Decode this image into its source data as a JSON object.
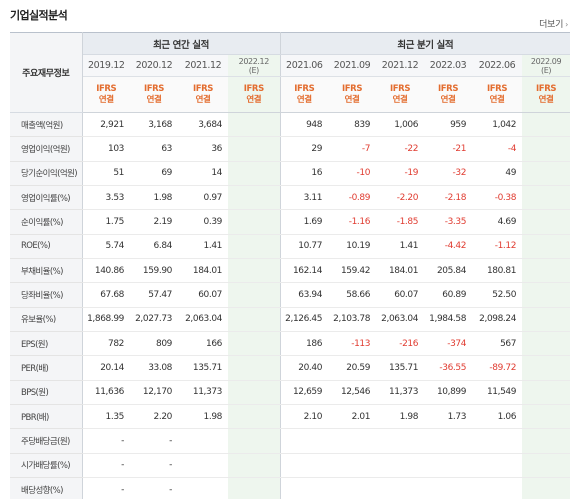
{
  "header": {
    "title": "기업실적분석",
    "more": "더보기"
  },
  "table": {
    "row_header_label": "주요재무정보",
    "annual_group": "최근 연간 실적",
    "quarter_group": "최근 분기 실적",
    "annual_periods": [
      {
        "label": "2019.12",
        "est": ""
      },
      {
        "label": "2020.12",
        "est": ""
      },
      {
        "label": "2021.12",
        "est": ""
      },
      {
        "label": "2022.12",
        "est": "(E)"
      }
    ],
    "quarter_periods": [
      {
        "label": "2021.06",
        "est": ""
      },
      {
        "label": "2021.09",
        "est": ""
      },
      {
        "label": "2021.12",
        "est": ""
      },
      {
        "label": "2022.03",
        "est": ""
      },
      {
        "label": "2022.06",
        "est": ""
      },
      {
        "label": "2022.09",
        "est": "(E)"
      }
    ],
    "ifrs": {
      "line1": "IFRS",
      "line2": "연결"
    },
    "rows": [
      {
        "label": "매출액(억원)",
        "values": [
          "2,921",
          "3,168",
          "3,684",
          "",
          "948",
          "839",
          "1,006",
          "959",
          "1,042",
          ""
        ]
      },
      {
        "label": "영업이익(억원)",
        "values": [
          "103",
          "63",
          "36",
          "",
          "29",
          "-7",
          "-22",
          "-21",
          "-4",
          ""
        ]
      },
      {
        "label": "당기순이익(억원)",
        "values": [
          "51",
          "69",
          "14",
          "",
          "16",
          "-10",
          "-19",
          "-32",
          "49",
          ""
        ]
      },
      {
        "label": "영업이익률(%)",
        "values": [
          "3.53",
          "1.98",
          "0.97",
          "",
          "3.11",
          "-0.89",
          "-2.20",
          "-2.18",
          "-0.38",
          ""
        ]
      },
      {
        "label": "순이익률(%)",
        "values": [
          "1.75",
          "2.19",
          "0.39",
          "",
          "1.69",
          "-1.16",
          "-1.85",
          "-3.35",
          "4.69",
          ""
        ]
      },
      {
        "label": "ROE(%)",
        "values": [
          "5.74",
          "6.84",
          "1.41",
          "",
          "10.77",
          "10.19",
          "1.41",
          "-4.42",
          "-1.12",
          ""
        ]
      },
      {
        "label": "부채비율(%)",
        "values": [
          "140.86",
          "159.90",
          "184.01",
          "",
          "162.14",
          "159.42",
          "184.01",
          "205.84",
          "180.81",
          ""
        ]
      },
      {
        "label": "당좌비율(%)",
        "values": [
          "67.68",
          "57.47",
          "60.07",
          "",
          "63.94",
          "58.66",
          "60.07",
          "60.89",
          "52.50",
          ""
        ]
      },
      {
        "label": "유보율(%)",
        "values": [
          "1,868.99",
          "2,027.73",
          "2,063.04",
          "",
          "2,126.45",
          "2,103.78",
          "2,063.04",
          "1,984.58",
          "2,098.24",
          ""
        ]
      },
      {
        "label": "EPS(원)",
        "values": [
          "782",
          "809",
          "166",
          "",
          "186",
          "-113",
          "-216",
          "-374",
          "567",
          ""
        ]
      },
      {
        "label": "PER(배)",
        "values": [
          "20.14",
          "33.08",
          "135.71",
          "",
          "20.40",
          "20.59",
          "135.71",
          "-36.55",
          "-89.72",
          ""
        ]
      },
      {
        "label": "BPS(원)",
        "values": [
          "11,636",
          "12,170",
          "11,373",
          "",
          "12,659",
          "12,546",
          "11,373",
          "10,899",
          "11,549",
          ""
        ]
      },
      {
        "label": "PBR(배)",
        "values": [
          "1.35",
          "2.20",
          "1.98",
          "",
          "2.10",
          "2.01",
          "1.98",
          "1.73",
          "1.06",
          ""
        ]
      },
      {
        "label": "주당배당금(원)",
        "values": [
          "-",
          "-",
          "",
          "",
          "",
          "",
          "",
          "",
          "",
          ""
        ]
      },
      {
        "label": "시가배당률(%)",
        "values": [
          "-",
          "-",
          "",
          "",
          "",
          "",
          "",
          "",
          "",
          ""
        ]
      },
      {
        "label": "배당성향(%)",
        "values": [
          "-",
          "-",
          "",
          "",
          "",
          "",
          "",
          "",
          "",
          ""
        ]
      }
    ]
  },
  "colors": {
    "negative": "#e03c31",
    "ifrs": "#e36c2e",
    "estimate_bg": "#eef6ee",
    "header_bg": "#e8ecf1"
  }
}
